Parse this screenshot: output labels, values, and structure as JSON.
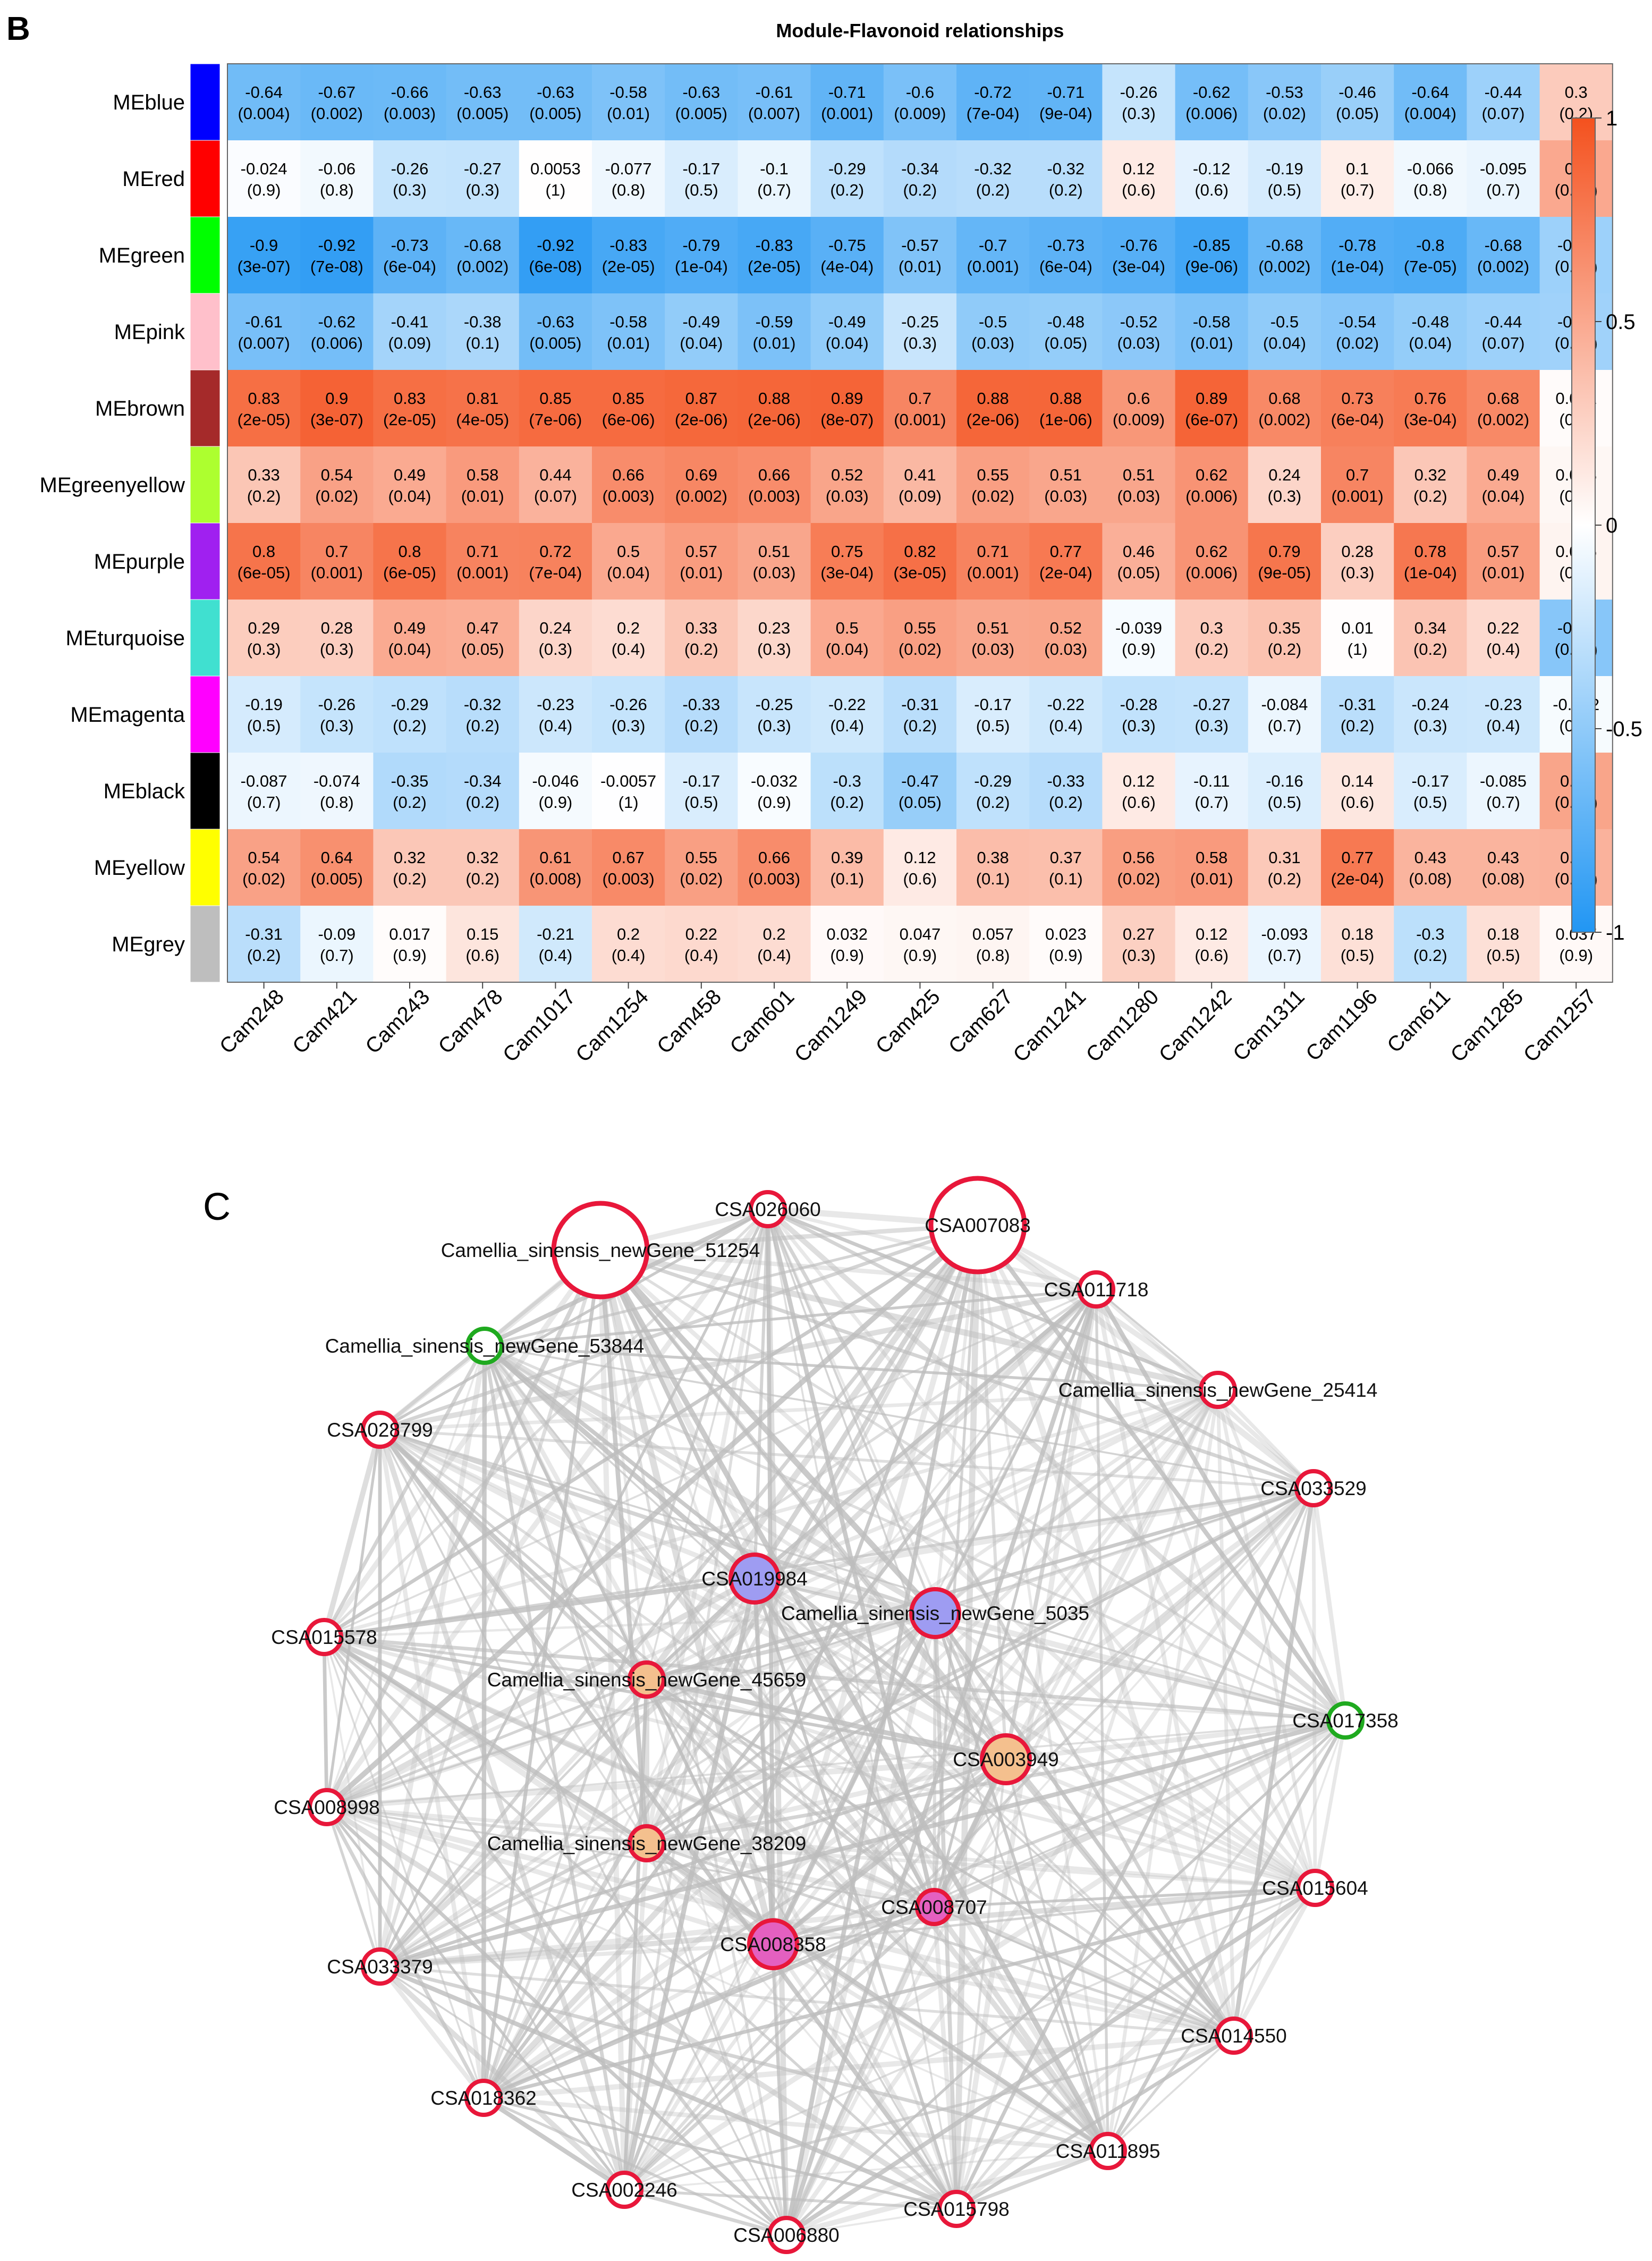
{
  "panels": {
    "heatmap_letter": "B",
    "network_letter": "C"
  },
  "chart_data": [
    {
      "type": "heatmap",
      "title": "Module-Flavonoid relationships",
      "rows": [
        "MEblue",
        "MEred",
        "MEgreen",
        "MEpink",
        "MEbrown",
        "MEgreenyellow",
        "MEpurple",
        "MEturquoise",
        "MEmagenta",
        "MEblack",
        "MEyellow",
        "MEgrey"
      ],
      "row_colors": [
        "#0000ff",
        "#ff0000",
        "#00ff00",
        "#ffc0cb",
        "#a52a2a",
        "#adff2f",
        "#a020f0",
        "#40e0d0",
        "#ff00ff",
        "#000000",
        "#ffff00",
        "#bebebe"
      ],
      "columns": [
        "Cam248",
        "Cam421",
        "Cam243",
        "Cam478",
        "Cam1017",
        "Cam1254",
        "Cam458",
        "Cam601",
        "Cam1249",
        "Cam425",
        "Cam627",
        "Cam1241",
        "Cam1280",
        "Cam1242",
        "Cam1311",
        "Cam1196",
        "Cam611",
        "Cam1285",
        "Cam1257"
      ],
      "values": [
        [
          -0.64,
          -0.67,
          -0.66,
          -0.63,
          -0.63,
          -0.58,
          -0.63,
          -0.61,
          -0.71,
          -0.6,
          -0.72,
          -0.71,
          -0.26,
          -0.62,
          -0.53,
          -0.46,
          -0.64,
          -0.44,
          0.3
        ],
        [
          -0.024,
          -0.06,
          -0.26,
          -0.27,
          0.0053,
          -0.077,
          -0.17,
          -0.1,
          -0.29,
          -0.34,
          -0.32,
          -0.32,
          0.12,
          -0.12,
          -0.19,
          0.1,
          -0.066,
          -0.095,
          0.5
        ],
        [
          -0.9,
          -0.92,
          -0.73,
          -0.68,
          -0.92,
          -0.83,
          -0.79,
          -0.83,
          -0.75,
          -0.57,
          -0.7,
          -0.73,
          -0.76,
          -0.85,
          -0.68,
          -0.78,
          -0.8,
          -0.68,
          -0.44
        ],
        [
          -0.61,
          -0.62,
          -0.41,
          -0.38,
          -0.63,
          -0.58,
          -0.49,
          -0.59,
          -0.49,
          -0.25,
          -0.5,
          -0.48,
          -0.52,
          -0.58,
          -0.5,
          -0.54,
          -0.48,
          -0.44,
          -0.43
        ],
        [
          0.83,
          0.9,
          0.83,
          0.81,
          0.85,
          0.85,
          0.87,
          0.88,
          0.89,
          0.7,
          0.88,
          0.88,
          0.6,
          0.89,
          0.68,
          0.73,
          0.76,
          0.68,
          0.021
        ],
        [
          0.33,
          0.54,
          0.49,
          0.58,
          0.44,
          0.66,
          0.69,
          0.66,
          0.52,
          0.41,
          0.55,
          0.51,
          0.51,
          0.62,
          0.24,
          0.7,
          0.32,
          0.49,
          0.048
        ],
        [
          0.8,
          0.7,
          0.8,
          0.71,
          0.72,
          0.5,
          0.57,
          0.51,
          0.75,
          0.82,
          0.71,
          0.77,
          0.46,
          0.62,
          0.79,
          0.28,
          0.78,
          0.57,
          0.066
        ],
        [
          0.29,
          0.28,
          0.49,
          0.47,
          0.24,
          0.2,
          0.33,
          0.23,
          0.5,
          0.55,
          0.51,
          0.52,
          -0.039,
          0.3,
          0.35,
          0.01,
          0.34,
          0.22,
          -0.54
        ],
        [
          -0.19,
          -0.26,
          -0.29,
          -0.32,
          -0.23,
          -0.26,
          -0.33,
          -0.25,
          -0.22,
          -0.31,
          -0.17,
          -0.22,
          -0.28,
          -0.27,
          -0.084,
          -0.31,
          -0.24,
          -0.23,
          -0.042
        ],
        [
          -0.087,
          -0.074,
          -0.35,
          -0.34,
          -0.046,
          -0.0057,
          -0.17,
          -0.032,
          -0.3,
          -0.47,
          -0.29,
          -0.33,
          0.12,
          -0.11,
          -0.16,
          0.14,
          -0.17,
          -0.085,
          0.52
        ],
        [
          0.54,
          0.64,
          0.32,
          0.32,
          0.61,
          0.67,
          0.55,
          0.66,
          0.39,
          0.12,
          0.38,
          0.37,
          0.56,
          0.58,
          0.31,
          0.77,
          0.43,
          0.43,
          0.44
        ],
        [
          -0.31,
          -0.09,
          0.017,
          0.15,
          -0.21,
          0.2,
          0.22,
          0.2,
          0.032,
          0.047,
          0.057,
          0.023,
          0.27,
          0.12,
          -0.093,
          0.18,
          -0.3,
          0.18,
          0.037
        ]
      ],
      "pvalues": [
        [
          "(0.004)",
          "(0.002)",
          "(0.003)",
          "(0.005)",
          "(0.005)",
          "(0.01)",
          "(0.005)",
          "(0.007)",
          "(0.001)",
          "(0.009)",
          "(7e-04)",
          "(9e-04)",
          "(0.3)",
          "(0.006)",
          "(0.02)",
          "(0.05)",
          "(0.004)",
          "(0.07)",
          "(0.2)"
        ],
        [
          "(0.9)",
          "(0.8)",
          "(0.3)",
          "(0.3)",
          "(1)",
          "(0.8)",
          "(0.5)",
          "(0.7)",
          "(0.2)",
          "(0.2)",
          "(0.2)",
          "(0.2)",
          "(0.6)",
          "(0.6)",
          "(0.5)",
          "(0.7)",
          "(0.8)",
          "(0.7)",
          "(0.03)"
        ],
        [
          "(3e-07)",
          "(7e-08)",
          "(6e-04)",
          "(0.002)",
          "(6e-08)",
          "(2e-05)",
          "(1e-04)",
          "(2e-05)",
          "(4e-04)",
          "(0.01)",
          "(0.001)",
          "(6e-04)",
          "(3e-04)",
          "(9e-06)",
          "(0.002)",
          "(1e-04)",
          "(7e-05)",
          "(0.002)",
          "(0.06)"
        ],
        [
          "(0.007)",
          "(0.006)",
          "(0.09)",
          "(0.1)",
          "(0.005)",
          "(0.01)",
          "(0.04)",
          "(0.01)",
          "(0.04)",
          "(0.3)",
          "(0.03)",
          "(0.05)",
          "(0.03)",
          "(0.01)",
          "(0.04)",
          "(0.02)",
          "(0.04)",
          "(0.07)",
          "(0.08)"
        ],
        [
          "(2e-05)",
          "(3e-07)",
          "(2e-05)",
          "(4e-05)",
          "(7e-06)",
          "(6e-06)",
          "(2e-06)",
          "(2e-06)",
          "(8e-07)",
          "(0.001)",
          "(2e-06)",
          "(1e-06)",
          "(0.009)",
          "(6e-07)",
          "(0.002)",
          "(6e-04)",
          "(3e-04)",
          "(0.002)",
          "(0.9)"
        ],
        [
          "(0.2)",
          "(0.02)",
          "(0.04)",
          "(0.01)",
          "(0.07)",
          "(0.003)",
          "(0.002)",
          "(0.003)",
          "(0.03)",
          "(0.09)",
          "(0.02)",
          "(0.03)",
          "(0.03)",
          "(0.006)",
          "(0.3)",
          "(0.001)",
          "(0.2)",
          "(0.04)",
          "(0.9)"
        ],
        [
          "(6e-05)",
          "(0.001)",
          "(6e-05)",
          "(0.001)",
          "(7e-04)",
          "(0.04)",
          "(0.01)",
          "(0.03)",
          "(3e-04)",
          "(3e-05)",
          "(0.001)",
          "(2e-04)",
          "(0.05)",
          "(0.006)",
          "(9e-05)",
          "(0.3)",
          "(1e-04)",
          "(0.01)",
          "(0.8)"
        ],
        [
          "(0.3)",
          "(0.3)",
          "(0.04)",
          "(0.05)",
          "(0.3)",
          "(0.4)",
          "(0.2)",
          "(0.3)",
          "(0.04)",
          "(0.02)",
          "(0.03)",
          "(0.03)",
          "(0.9)",
          "(0.2)",
          "(0.2)",
          "(1)",
          "(0.2)",
          "(0.4)",
          "(0.02)"
        ],
        [
          "(0.5)",
          "(0.3)",
          "(0.2)",
          "(0.2)",
          "(0.4)",
          "(0.3)",
          "(0.2)",
          "(0.3)",
          "(0.4)",
          "(0.2)",
          "(0.5)",
          "(0.4)",
          "(0.3)",
          "(0.3)",
          "(0.7)",
          "(0.2)",
          "(0.3)",
          "(0.4)",
          "(0.9)"
        ],
        [
          "(0.7)",
          "(0.8)",
          "(0.2)",
          "(0.2)",
          "(0.9)",
          "(1)",
          "(0.5)",
          "(0.9)",
          "(0.2)",
          "(0.05)",
          "(0.2)",
          "(0.2)",
          "(0.6)",
          "(0.7)",
          "(0.5)",
          "(0.6)",
          "(0.5)",
          "(0.7)",
          "(0.03)"
        ],
        [
          "(0.02)",
          "(0.005)",
          "(0.2)",
          "(0.2)",
          "(0.008)",
          "(0.003)",
          "(0.02)",
          "(0.003)",
          "(0.1)",
          "(0.6)",
          "(0.1)",
          "(0.1)",
          "(0.02)",
          "(0.01)",
          "(0.2)",
          "(2e-04)",
          "(0.08)",
          "(0.08)",
          "(0.07)"
        ],
        [
          "(0.2)",
          "(0.7)",
          "(0.9)",
          "(0.6)",
          "(0.4)",
          "(0.4)",
          "(0.4)",
          "(0.4)",
          "(0.9)",
          "(0.9)",
          "(0.8)",
          "(0.9)",
          "(0.3)",
          "(0.6)",
          "(0.7)",
          "(0.5)",
          "(0.2)",
          "(0.5)",
          "(0.9)"
        ]
      ],
      "color_scale": {
        "min": -1,
        "max": 1,
        "low": "#2196f3",
        "mid": "#ffffff",
        "high": "#f4511e",
        "ticks": [
          "1",
          "0.5",
          "0",
          "-0.5",
          "-1"
        ]
      },
      "legend": "right"
    },
    {
      "type": "network",
      "nodes": [
        {
          "label": "CSA026060",
          "outline": "red",
          "fill": "none",
          "size": "small"
        },
        {
          "label": "CSA007083",
          "outline": "red",
          "fill": "none",
          "size": "large"
        },
        {
          "label": "Camellia_sinensis_newGene_51254",
          "outline": "red",
          "fill": "none",
          "size": "large"
        },
        {
          "label": "CSA011718",
          "outline": "red",
          "fill": "none",
          "size": "small"
        },
        {
          "label": "Camellia_sinensis_newGene_53844",
          "outline": "green",
          "fill": "none",
          "size": "small"
        },
        {
          "label": "Camellia_sinensis_newGene_25414",
          "outline": "red",
          "fill": "none",
          "size": "small"
        },
        {
          "label": "CSA028799",
          "outline": "red",
          "fill": "none",
          "size": "small"
        },
        {
          "label": "CSA033529",
          "outline": "red",
          "fill": "none",
          "size": "small"
        },
        {
          "label": "CSA019984",
          "outline": "red",
          "fill": "lavender",
          "size": "medium"
        },
        {
          "label": "Camellia_sinensis_newGene_5035",
          "outline": "red",
          "fill": "lavender",
          "size": "medium"
        },
        {
          "label": "CSA015578",
          "outline": "red",
          "fill": "none",
          "size": "small"
        },
        {
          "label": "Camellia_sinensis_newGene_45659",
          "outline": "red",
          "fill": "peach",
          "size": "small"
        },
        {
          "label": "CSA017358",
          "outline": "green",
          "fill": "none",
          "size": "small"
        },
        {
          "label": "CSA003949",
          "outline": "red",
          "fill": "peach",
          "size": "medium"
        },
        {
          "label": "CSA008998",
          "outline": "red",
          "fill": "none",
          "size": "small"
        },
        {
          "label": "Camellia_sinensis_newGene_38209",
          "outline": "red",
          "fill": "peach",
          "size": "small"
        },
        {
          "label": "CSA015604",
          "outline": "red",
          "fill": "none",
          "size": "small"
        },
        {
          "label": "CSA008707",
          "outline": "red",
          "fill": "magenta",
          "size": "small"
        },
        {
          "label": "CSA008358",
          "outline": "red",
          "fill": "magenta",
          "size": "medium"
        },
        {
          "label": "CSA033379",
          "outline": "red",
          "fill": "none",
          "size": "small"
        },
        {
          "label": "CSA014550",
          "outline": "red",
          "fill": "none",
          "size": "small"
        },
        {
          "label": "CSA018362",
          "outline": "red",
          "fill": "none",
          "size": "small"
        },
        {
          "label": "CSA011895",
          "outline": "red",
          "fill": "none",
          "size": "small"
        },
        {
          "label": "CSA002246",
          "outline": "red",
          "fill": "none",
          "size": "small"
        },
        {
          "label": "CSA015798",
          "outline": "red",
          "fill": "none",
          "size": "small"
        },
        {
          "label": "CSA006880",
          "outline": "red",
          "fill": "none",
          "size": "small"
        }
      ],
      "colors": {
        "red": "#e8173a",
        "green": "#1faa1f",
        "lavender": "#9e9cf2",
        "peach": "#f4c08e",
        "magenta": "#e460c0",
        "edge": "#bdbdbd"
      }
    }
  ]
}
